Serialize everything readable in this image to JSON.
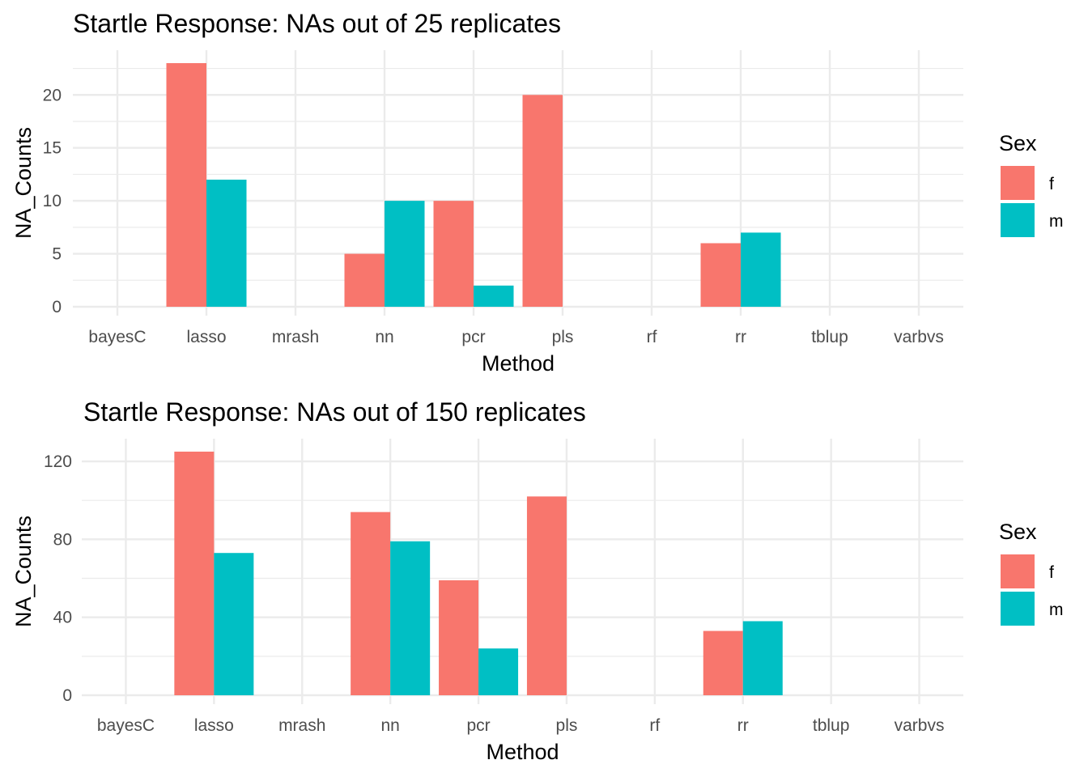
{
  "chart_data": [
    {
      "type": "bar",
      "title": "Startle Response: NAs out of 25 replicates",
      "xlabel": "Method",
      "ylabel": "NA_Counts",
      "categories": [
        "bayesC",
        "lasso",
        "mrash",
        "nn",
        "pcr",
        "pls",
        "rf",
        "rr",
        "tblup",
        "varbvs"
      ],
      "series": [
        {
          "name": "f",
          "color": "#F8766D",
          "values": [
            0,
            23,
            0,
            5,
            10,
            20,
            0,
            6,
            0,
            0
          ]
        },
        {
          "name": "m",
          "color": "#00BFC4",
          "values": [
            0,
            12,
            0,
            10,
            2,
            0,
            0,
            7,
            0,
            0
          ]
        }
      ],
      "ylim": [
        0,
        23
      ],
      "yticks": [
        0,
        5,
        10,
        15,
        20
      ],
      "grid": true,
      "legend": {
        "title": "Sex",
        "position": "right",
        "labels": [
          "f",
          "m"
        ]
      }
    },
    {
      "type": "bar",
      "title": "Startle Response: NAs out of 150 replicates",
      "xlabel": "Method",
      "ylabel": "NA_Counts",
      "categories": [
        "bayesC",
        "lasso",
        "mrash",
        "nn",
        "pcr",
        "pls",
        "rf",
        "rr",
        "tblup",
        "varbvs"
      ],
      "series": [
        {
          "name": "f",
          "color": "#F8766D",
          "values": [
            0,
            125,
            0,
            94,
            59,
            102,
            0,
            33,
            0,
            0
          ]
        },
        {
          "name": "m",
          "color": "#00BFC4",
          "values": [
            0,
            73,
            0,
            79,
            24,
            0,
            0,
            38,
            0,
            0
          ]
        }
      ],
      "ylim": [
        0,
        125
      ],
      "yticks": [
        0,
        40,
        80,
        120
      ],
      "grid": true,
      "legend": {
        "title": "Sex",
        "position": "right",
        "labels": [
          "f",
          "m"
        ]
      }
    }
  ]
}
